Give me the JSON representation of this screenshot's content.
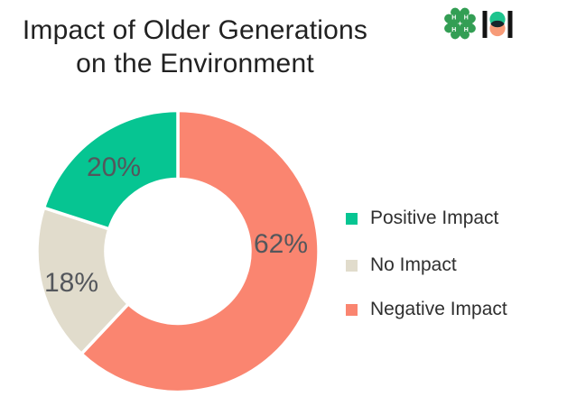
{
  "header": {
    "title_line1": "Impact of Older Generations",
    "title_line2": "on the Environment"
  },
  "logos": {
    "four_h_clover": {
      "icon": "four-h-clover-icon",
      "letter": "H",
      "green": "#339e54"
    },
    "harris_poll": {
      "icon": "harris-poll-icon",
      "bar_color": "#131313",
      "top_circle_color": "#1ec48e",
      "bottom_circle_color": "#f79b78",
      "overlap_color": "#16262c"
    }
  },
  "chart_data": {
    "type": "pie",
    "subtype": "donut",
    "title": "Impact of Older Generations on the Environment",
    "direction": "clockwise",
    "start_angle_deg_from_top": 0,
    "inner_radius_ratio": 0.51,
    "slices": [
      {
        "label": "Negative Impact",
        "value": 62,
        "display": "62%",
        "color": "#fa8570"
      },
      {
        "label": "No Impact",
        "value": 18,
        "display": "18%",
        "color": "#e1dccc"
      },
      {
        "label": "Positive Impact",
        "value": 20,
        "display": "20%",
        "color": "#06c592"
      }
    ],
    "legend_position": "right",
    "legend": [
      {
        "label": "Positive Impact",
        "color": "#06c592"
      },
      {
        "label": "No Impact",
        "color": "#e1dccc"
      },
      {
        "label": "Negative Impact",
        "color": "#fa8570"
      }
    ]
  },
  "colors": {
    "background": "#ffffff",
    "title_text": "#212121",
    "percent_label_text": "#54575c",
    "legend_text": "#2f2f2f",
    "slice_gap": "#ffffff"
  }
}
